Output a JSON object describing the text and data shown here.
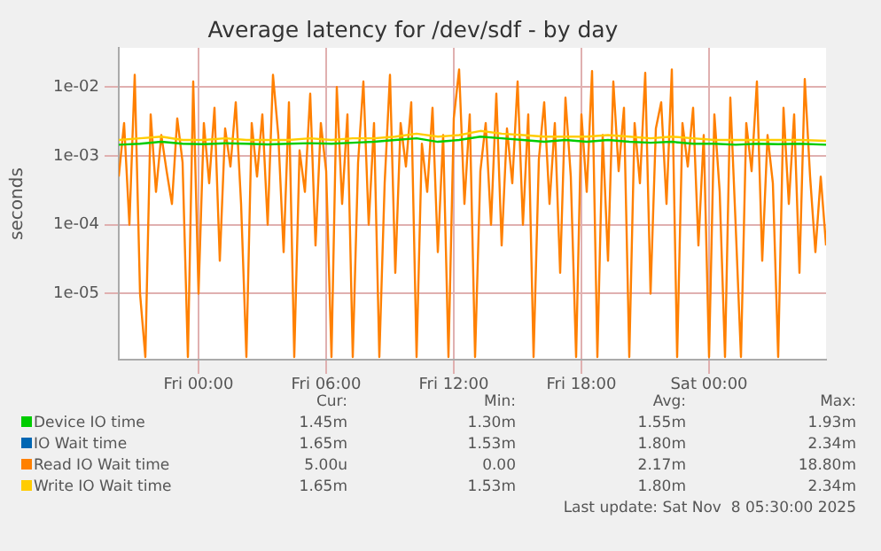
{
  "chart_data": {
    "type": "line",
    "title": "Average latency for /dev/sdf - by day",
    "ylabel": "seconds",
    "log": "y",
    "grid": true,
    "legend": "bottom",
    "marker": "none",
    "line_style": "solid",
    "xlim": [
      "2025-11-06T20:15",
      "2025-11-08T05:30"
    ],
    "ylim": [
      1.1e-06,
      0.037
    ],
    "xticks": [
      {
        "value": "2025-11-07T00:00",
        "label": "Fri 00:00"
      },
      {
        "value": "2025-11-07T06:00",
        "label": "Fri 06:00"
      },
      {
        "value": "2025-11-07T12:00",
        "label": "Fri 12:00"
      },
      {
        "value": "2025-11-07T18:00",
        "label": "Fri 18:00"
      },
      {
        "value": "2025-11-08T00:00",
        "label": "Sat 00:00"
      }
    ],
    "yticks": [
      {
        "value": 1e-05,
        "label": "1e-05"
      },
      {
        "value": 0.0001,
        "label": "1e-04"
      },
      {
        "value": 0.001,
        "label": "1e-03"
      },
      {
        "value": 0.01,
        "label": "1e-02"
      }
    ],
    "x": [
      "2025-11-06T20:15",
      "2025-11-06T21:15",
      "2025-11-06T22:15",
      "2025-11-06T23:15",
      "2025-11-07T00:15",
      "2025-11-07T01:15",
      "2025-11-07T02:15",
      "2025-11-07T03:15",
      "2025-11-07T04:15",
      "2025-11-07T05:15",
      "2025-11-07T06:15",
      "2025-11-07T07:15",
      "2025-11-07T08:15",
      "2025-11-07T09:15",
      "2025-11-07T10:15",
      "2025-11-07T11:15",
      "2025-11-07T12:15",
      "2025-11-07T13:15",
      "2025-11-07T14:15",
      "2025-11-07T15:15",
      "2025-11-07T16:15",
      "2025-11-07T17:15",
      "2025-11-07T18:15",
      "2025-11-07T19:15",
      "2025-11-07T20:15",
      "2025-11-07T21:15",
      "2025-11-07T22:15",
      "2025-11-07T23:15",
      "2025-11-08T00:15",
      "2025-11-08T01:15",
      "2025-11-08T02:15",
      "2025-11-08T03:15",
      "2025-11-08T04:15",
      "2025-11-08T05:30"
    ],
    "series": [
      {
        "name": "Device IO time",
        "color": "#00cc00",
        "values": [
          0.00145,
          0.0015,
          0.0016,
          0.0015,
          0.00148,
          0.00152,
          0.0015,
          0.00147,
          0.0015,
          0.00153,
          0.0015,
          0.00155,
          0.0016,
          0.0017,
          0.0018,
          0.0016,
          0.0017,
          0.0019,
          0.0018,
          0.0017,
          0.0016,
          0.0017,
          0.0016,
          0.0017,
          0.0016,
          0.00155,
          0.0016,
          0.0015,
          0.0015,
          0.00145,
          0.0015,
          0.00148,
          0.0015,
          0.00145
        ]
      },
      {
        "name": "IO Wait time",
        "color": "#0066b3",
        "values": [
          null,
          null,
          null,
          null,
          null,
          null,
          null,
          null,
          null,
          null,
          null,
          null,
          null,
          null,
          null,
          null,
          null,
          null,
          null,
          null,
          null,
          null,
          null,
          null,
          null,
          null,
          null,
          null,
          null,
          null,
          null,
          null,
          null,
          null
        ]
      },
      {
        "name": "Read IO Wait time",
        "color": "#ff8000",
        "x": [
          "2025-11-06T20:15",
          "2025-11-06T20:30",
          "2025-11-06T20:45",
          "2025-11-06T21:00",
          "2025-11-06T21:15",
          "2025-11-06T21:30",
          "2025-11-06T21:45",
          "2025-11-06T22:00",
          "2025-11-06T22:15",
          "2025-11-06T22:30",
          "2025-11-06T22:45",
          "2025-11-06T23:00",
          "2025-11-06T23:15",
          "2025-11-06T23:30",
          "2025-11-06T23:45",
          "2025-11-07T00:00",
          "2025-11-07T00:15",
          "2025-11-07T00:30",
          "2025-11-07T00:45",
          "2025-11-07T01:00",
          "2025-11-07T01:15",
          "2025-11-07T01:30",
          "2025-11-07T01:45",
          "2025-11-07T02:00",
          "2025-11-07T02:15",
          "2025-11-07T02:30",
          "2025-11-07T02:45",
          "2025-11-07T03:00",
          "2025-11-07T03:15",
          "2025-11-07T03:30",
          "2025-11-07T03:45",
          "2025-11-07T04:00",
          "2025-11-07T04:15",
          "2025-11-07T04:30",
          "2025-11-07T04:45",
          "2025-11-07T05:00",
          "2025-11-07T05:15",
          "2025-11-07T05:30",
          "2025-11-07T05:45",
          "2025-11-07T06:00",
          "2025-11-07T06:15",
          "2025-11-07T06:30",
          "2025-11-07T06:45",
          "2025-11-07T07:00",
          "2025-11-07T07:15",
          "2025-11-07T07:30",
          "2025-11-07T07:45",
          "2025-11-07T08:00",
          "2025-11-07T08:15",
          "2025-11-07T08:30",
          "2025-11-07T08:45",
          "2025-11-07T09:00",
          "2025-11-07T09:15",
          "2025-11-07T09:30",
          "2025-11-07T09:45",
          "2025-11-07T10:00",
          "2025-11-07T10:15",
          "2025-11-07T10:30",
          "2025-11-07T10:45",
          "2025-11-07T11:00",
          "2025-11-07T11:15",
          "2025-11-07T11:30",
          "2025-11-07T11:45",
          "2025-11-07T12:00",
          "2025-11-07T12:15",
          "2025-11-07T12:30",
          "2025-11-07T12:45",
          "2025-11-07T13:00",
          "2025-11-07T13:15",
          "2025-11-07T13:30",
          "2025-11-07T13:45",
          "2025-11-07T14:00",
          "2025-11-07T14:15",
          "2025-11-07T14:30",
          "2025-11-07T14:45",
          "2025-11-07T15:00",
          "2025-11-07T15:15",
          "2025-11-07T15:30",
          "2025-11-07T15:45",
          "2025-11-07T16:00",
          "2025-11-07T16:15",
          "2025-11-07T16:30",
          "2025-11-07T16:45",
          "2025-11-07T17:00",
          "2025-11-07T17:15",
          "2025-11-07T17:30",
          "2025-11-07T17:45",
          "2025-11-07T18:00",
          "2025-11-07T18:15",
          "2025-11-07T18:30",
          "2025-11-07T18:45",
          "2025-11-07T19:00",
          "2025-11-07T19:15",
          "2025-11-07T19:30",
          "2025-11-07T19:45",
          "2025-11-07T20:00",
          "2025-11-07T20:15",
          "2025-11-07T20:30",
          "2025-11-07T20:45",
          "2025-11-07T21:00",
          "2025-11-07T21:15",
          "2025-11-07T21:30",
          "2025-11-07T21:45",
          "2025-11-07T22:00",
          "2025-11-07T22:15",
          "2025-11-07T22:30",
          "2025-11-07T22:45",
          "2025-11-07T23:00",
          "2025-11-07T23:15",
          "2025-11-07T23:30",
          "2025-11-07T23:45",
          "2025-11-08T00:00",
          "2025-11-08T00:15",
          "2025-11-08T00:30",
          "2025-11-08T00:45",
          "2025-11-08T01:00",
          "2025-11-08T01:15",
          "2025-11-08T01:30",
          "2025-11-08T01:45",
          "2025-11-08T02:00",
          "2025-11-08T02:15",
          "2025-11-08T02:30",
          "2025-11-08T02:45",
          "2025-11-08T03:00",
          "2025-11-08T03:15",
          "2025-11-08T03:30",
          "2025-11-08T03:45",
          "2025-11-08T04:00",
          "2025-11-08T04:15",
          "2025-11-08T04:30",
          "2025-11-08T04:45",
          "2025-11-08T05:00",
          "2025-11-08T05:15",
          "2025-11-08T05:30"
        ],
        "values": [
          0.0005,
          0.003,
          0.0001,
          0.015,
          1e-05,
          1.2e-06,
          0.004,
          0.0003,
          0.002,
          0.0006,
          0.0002,
          0.0035,
          0.0008,
          1.2e-06,
          0.012,
          1e-05,
          0.003,
          0.0004,
          0.005,
          3e-05,
          0.0025,
          0.0007,
          0.006,
          0.0002,
          1.2e-06,
          0.003,
          0.0005,
          0.004,
          0.0001,
          0.015,
          0.002,
          4e-05,
          0.006,
          1.2e-06,
          0.0012,
          0.0003,
          0.008,
          5e-05,
          0.003,
          0.0006,
          1.2e-06,
          0.01,
          0.0002,
          0.004,
          1.2e-06,
          0.0008,
          0.012,
          0.0001,
          0.003,
          1.2e-06,
          0.0004,
          0.015,
          2e-05,
          0.003,
          0.0007,
          0.006,
          1.2e-06,
          0.0015,
          0.0003,
          0.005,
          4e-05,
          0.002,
          1.2e-06,
          0.0035,
          0.018,
          0.0002,
          0.004,
          1.2e-06,
          0.0006,
          0.003,
          0.0001,
          0.008,
          5e-05,
          0.0025,
          0.0004,
          0.012,
          0.0001,
          0.004,
          1.2e-06,
          0.0009,
          0.006,
          0.0002,
          0.003,
          2e-05,
          0.007,
          0.0005,
          1.2e-06,
          0.004,
          0.0003,
          0.017,
          1.2e-06,
          0.002,
          3e-05,
          0.012,
          0.0006,
          0.005,
          1.2e-06,
          0.003,
          0.0004,
          0.016,
          1e-05,
          0.0025,
          0.006,
          0.0002,
          0.018,
          1.2e-06,
          0.003,
          0.0007,
          0.005,
          5e-05,
          0.002,
          1.2e-06,
          0.004,
          0.0003,
          1.2e-06,
          0.007,
          0.0001,
          1.2e-06,
          0.003,
          0.0006,
          0.012,
          3e-05,
          0.002,
          0.0004,
          1.2e-06,
          0.005,
          0.0002,
          0.004,
          2e-05,
          0.013,
          0.0005,
          4e-05,
          0.0005,
          5e-05
        ]
      },
      {
        "name": "Write IO Wait time",
        "color": "#ffcc00",
        "values": [
          0.0017,
          0.0018,
          0.0019,
          0.0017,
          0.0017,
          0.0018,
          0.0017,
          0.0017,
          0.0017,
          0.0018,
          0.0017,
          0.0018,
          0.0018,
          0.0019,
          0.0021,
          0.0019,
          0.002,
          0.0023,
          0.0021,
          0.002,
          0.0019,
          0.0019,
          0.0019,
          0.002,
          0.0019,
          0.0018,
          0.0019,
          0.0018,
          0.0017,
          0.0017,
          0.0017,
          0.0017,
          0.0017,
          0.00165
        ]
      }
    ],
    "annotations": [
      "Cur:",
      "Min:",
      "Avg:",
      "Max:",
      "1.45m",
      "1.30m",
      "1.55m",
      "1.93m",
      "1.65m",
      "1.53m",
      "1.80m",
      "2.34m",
      "5.00u",
      "0.00",
      "2.17m",
      "18.80m",
      "1.65m",
      "1.53m",
      "1.80m",
      "2.34m",
      "Last update: Sat Nov  8 05:30:00 2025"
    ]
  }
}
